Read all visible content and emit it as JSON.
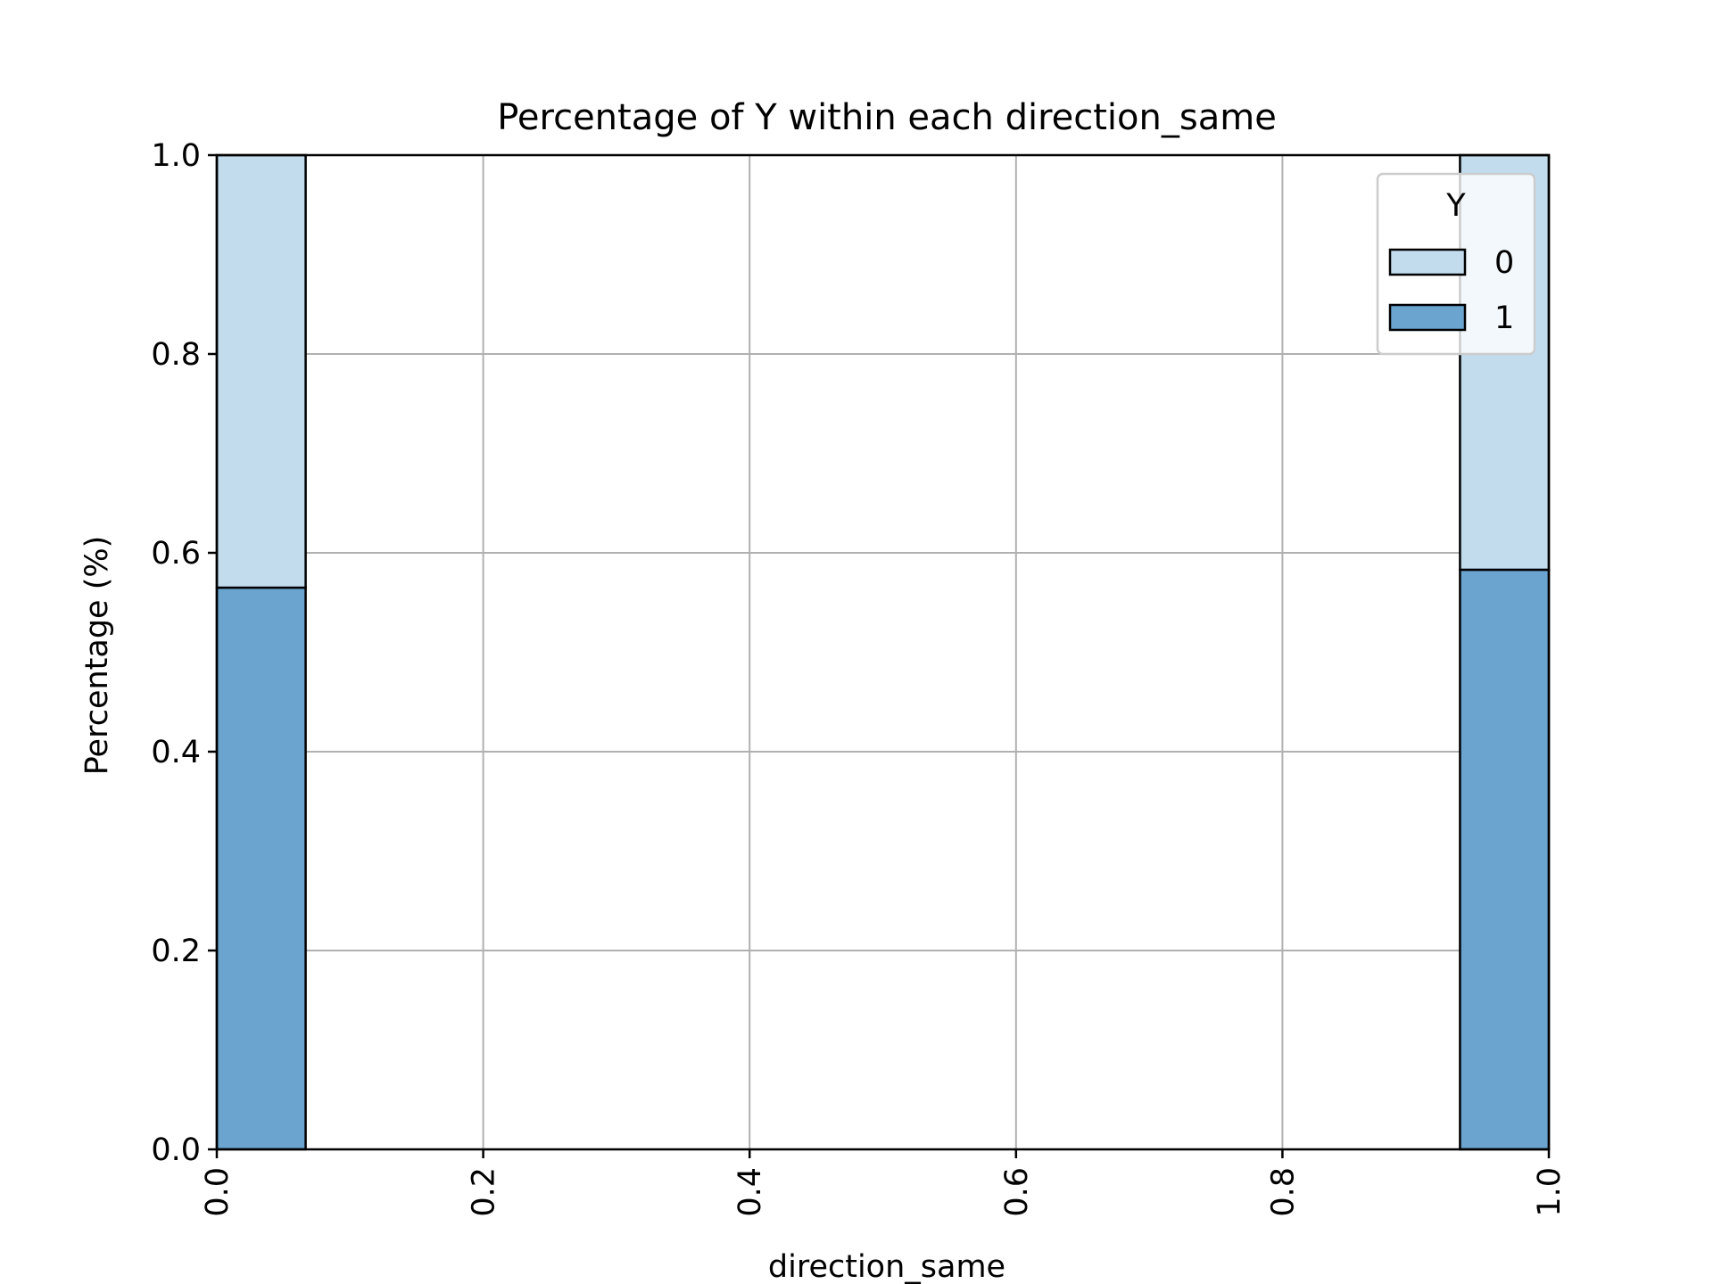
{
  "chart_data": {
    "type": "bar",
    "stacked": true,
    "title": "Percentage of Y within each direction_same",
    "xlabel": "direction_same",
    "ylabel": "Percentage (%)",
    "xlim": [
      0.0,
      1.0
    ],
    "ylim": [
      0.0,
      1.0
    ],
    "x_ticks": [
      "0.0",
      "0.2",
      "0.4",
      "0.6",
      "0.8",
      "1.0"
    ],
    "y_ticks": [
      "0.0",
      "0.2",
      "0.4",
      "0.6",
      "0.8",
      "1.0"
    ],
    "grid": true,
    "bins": [
      {
        "x_start": 0.0,
        "x_end": 0.0667
      },
      {
        "x_start": 0.9333,
        "x_end": 1.0
      }
    ],
    "series": [
      {
        "name": "1",
        "color": "#6aa4cf",
        "values": [
          0.565,
          0.583
        ]
      },
      {
        "name": "0",
        "color": "#c2dcee",
        "values": [
          0.435,
          0.417
        ]
      }
    ],
    "legend": {
      "title": "Y",
      "placement": "top-right",
      "entries": [
        {
          "label": "0",
          "color": "#c2dcee"
        },
        {
          "label": "1",
          "color": "#6aa4cf"
        }
      ]
    }
  }
}
